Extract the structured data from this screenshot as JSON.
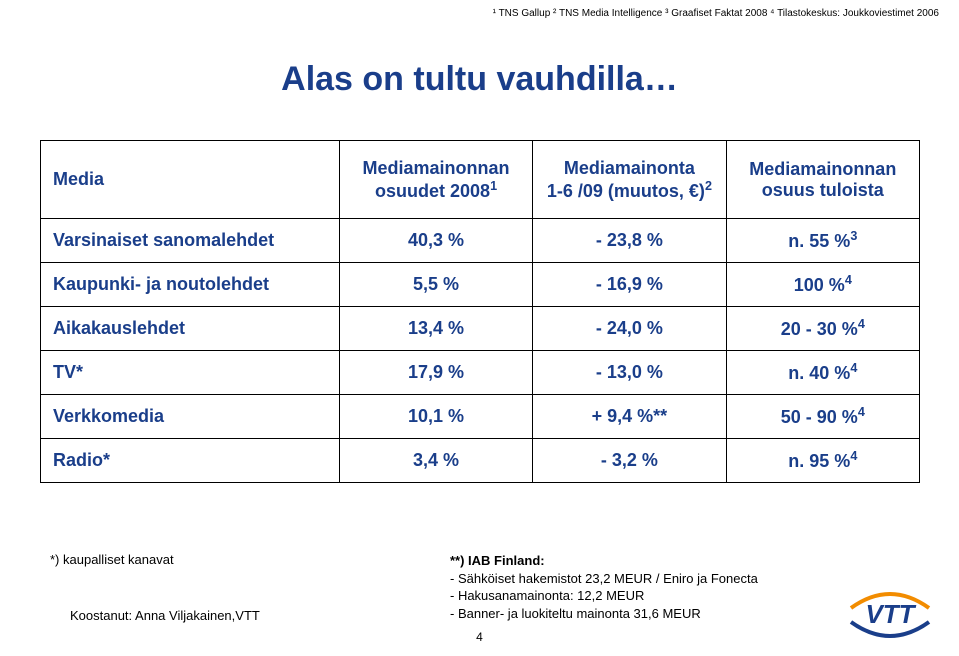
{
  "source_line": "¹ TNS Gallup ² TNS Media Intelligence ³ Graafiset Faktat 2008 ⁴ Tilastokeskus: Joukkoviestimet 2006",
  "title": "Alas on tultu vauhdilla…",
  "table": {
    "headers": {
      "c0": "Media",
      "c1_line1": "Mediamainonnan",
      "c1_line2": "osuudet 2008",
      "c1_sup": "1",
      "c2_line1": "Mediamainonta",
      "c2_line2": "1-6 /09 (muutos, €)",
      "c2_sup": "2",
      "c3_line1": "Mediamainonnan",
      "c3_line2": "osuus tuloista"
    },
    "rows": [
      {
        "label": "Varsinaiset sanomalehdet",
        "c1": "40,3 %",
        "c2": "- 23,8 %",
        "c3": "n. 55 %",
        "c3_sup": "3"
      },
      {
        "label": "Kaupunki- ja noutolehdet",
        "c1": "5,5 %",
        "c2": "- 16,9 %",
        "c3": "100 %",
        "c3_sup": "4"
      },
      {
        "label": "Aikakauslehdet",
        "c1": "13,4 %",
        "c2": "- 24,0 %",
        "c3": "20 - 30 %",
        "c3_sup": "4"
      },
      {
        "label": "TV*",
        "c1": "17,9 %",
        "c2": "- 13,0 %",
        "c3": "n. 40 %",
        "c3_sup": "4"
      },
      {
        "label": "Verkkomedia",
        "c1": "10,1 %",
        "c2": "+ 9,4 %**",
        "c3": "50 - 90 %",
        "c3_sup": "4"
      },
      {
        "label": "Radio*",
        "c1": "3,4 %",
        "c2": "- 3,2 %",
        "c3": "n. 95 %",
        "c3_sup": "4"
      }
    ]
  },
  "footnote_left": "*) kaupalliset kanavat",
  "compiler": "Koostanut: Anna Viljakainen,VTT",
  "footnote_right": {
    "hd": "**) IAB Finland:",
    "l1": "- Sähköiset hakemistot 23,2 MEUR / Eniro ja Fonecta",
    "l2": "- Hakusanamainonta: 12,2 MEUR",
    "l3": "- Banner- ja luokiteltu mainonta 31,6 MEUR"
  },
  "page_number": "4",
  "logo": {
    "text": "VTT",
    "text_color": "#1a3e8a",
    "arc_color_top": "#f28c00",
    "arc_color_bottom": "#1a3e8a"
  },
  "colors": {
    "brand_text": "#1a3e8a",
    "body_text": "#000000",
    "border": "#000000",
    "background": "#ffffff"
  },
  "fontsizes": {
    "title": 34,
    "table": 18,
    "footnote": 13,
    "source": 10,
    "page_num": 12
  }
}
